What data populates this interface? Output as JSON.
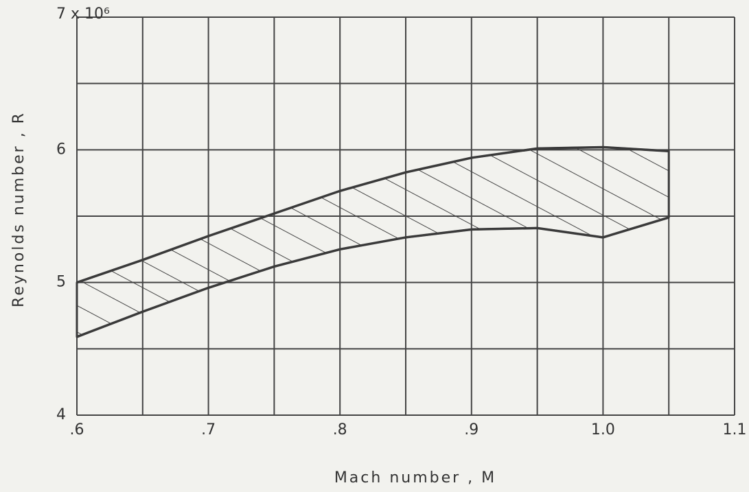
{
  "chart_data": {
    "type": "band",
    "x_label": "Mach number , M",
    "y_label": "Reynolds number , R",
    "x": [
      0.6,
      0.65,
      0.7,
      0.75,
      0.8,
      0.85,
      0.9,
      0.95,
      1.0,
      1.05
    ],
    "upper": [
      5.0,
      5.17,
      5.35,
      5.52,
      5.69,
      5.83,
      5.94,
      6.01,
      6.02,
      5.99
    ],
    "lower": [
      4.59,
      4.78,
      4.96,
      5.12,
      5.25,
      5.34,
      5.4,
      5.41,
      5.34,
      5.49
    ],
    "color": "#3a3a3a",
    "hatch": true,
    "xlim": [
      0.6,
      1.1
    ],
    "ylim": [
      4,
      7
    ],
    "xticks": [
      {
        "value": 0.6,
        "label": ".6"
      },
      {
        "value": 0.7,
        "label": ".7"
      },
      {
        "value": 0.8,
        "label": ".8"
      },
      {
        "value": 0.9,
        "label": ".9"
      },
      {
        "value": 1.0,
        "label": "1.0"
      },
      1.1
    ],
    "yticks": [
      4,
      5,
      6,
      {
        "value": 7,
        "label": "7 x 10⁶"
      }
    ],
    "minor_xticks": [
      0.65,
      0.75,
      0.85,
      0.95,
      1.05
    ],
    "minor_yticks": [
      4.5,
      5.5,
      6.5
    ],
    "grid": true
  }
}
